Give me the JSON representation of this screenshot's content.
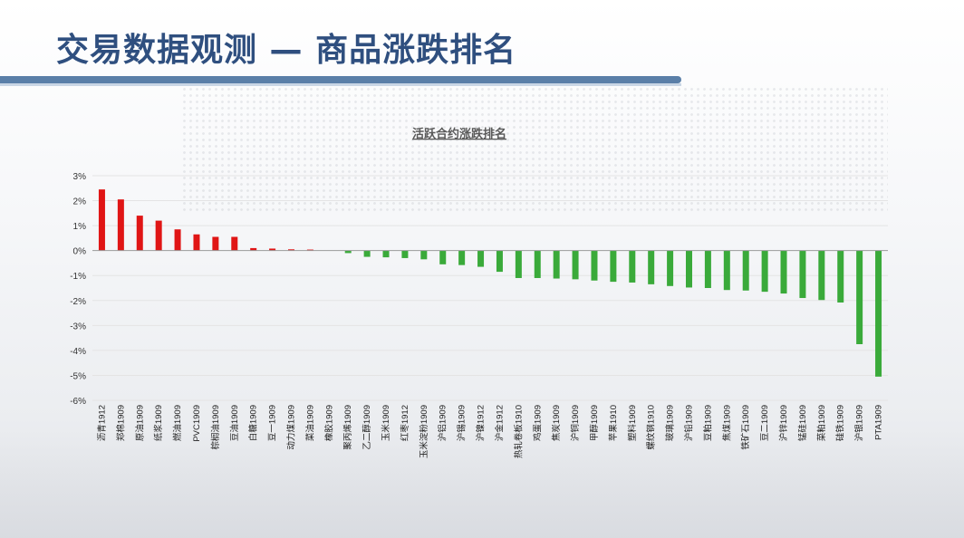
{
  "slide": {
    "title": "交易数据观测 — 商品涨跌排名"
  },
  "colors": {
    "title": "#2f4f7f",
    "accent_bar": "#5a7fa8",
    "positive": "#e01515",
    "negative": "#3aaa3a"
  },
  "chart_data": {
    "type": "bar",
    "title": "活跃合约涨跌排名",
    "xlabel": "",
    "ylabel": "",
    "ylim": [
      -6,
      3
    ],
    "yticks": [
      "3%",
      "2%",
      "1%",
      "0%",
      "-1%",
      "-2%",
      "-3%",
      "-4%",
      "-5%",
      "-6%"
    ],
    "grid": true,
    "legend": "none",
    "categories": [
      "沥青1912",
      "郑棉1909",
      "原油1909",
      "纸浆1909",
      "燃油1909",
      "PVC1909",
      "棕榈油1909",
      "豆油1909",
      "白糖1909",
      "豆一1909",
      "动力煤1909",
      "菜油1909",
      "橡胶1909",
      "聚丙烯1909",
      "乙二醇1909",
      "玉米1909",
      "红枣1912",
      "玉米淀粉1909",
      "沪铝1909",
      "沪锡1909",
      "沪镍1912",
      "沪金1912",
      "热轧卷板1910",
      "鸡蛋1909",
      "焦炭1909",
      "沪铜1909",
      "甲醇1909",
      "苹果1910",
      "塑料1909",
      "螺纹钢1910",
      "玻璃1909",
      "沪铅1909",
      "豆粕1909",
      "焦煤1909",
      "铁矿石1909",
      "豆二1909",
      "沪锌1909",
      "锰硅1909",
      "菜粕1909",
      "硅铁1909",
      "沪银1909",
      "PTA1909"
    ],
    "values": [
      2.45,
      2.05,
      1.4,
      1.2,
      0.85,
      0.65,
      0.55,
      0.55,
      0.1,
      0.08,
      0.05,
      0.04,
      0.0,
      -0.1,
      -0.25,
      -0.27,
      -0.3,
      -0.35,
      -0.55,
      -0.58,
      -0.65,
      -0.85,
      -1.1,
      -1.1,
      -1.12,
      -1.15,
      -1.2,
      -1.25,
      -1.28,
      -1.35,
      -1.42,
      -1.48,
      -1.5,
      -1.58,
      -1.6,
      -1.65,
      -1.72,
      -1.9,
      -1.98,
      -2.08,
      -3.75,
      -5.05
    ]
  }
}
